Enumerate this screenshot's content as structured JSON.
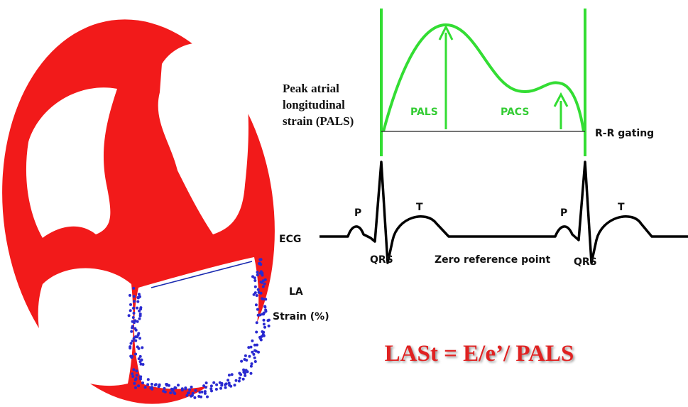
{
  "labels": {
    "pals_note": [
      "Peak atrial",
      "longitudinal",
      "strain (PALS)"
    ],
    "pals": "PALS",
    "pacs": "PACS",
    "rr_gating": "R-R gating",
    "p_first": "P",
    "t_first": "T",
    "ecg": "ECG",
    "qrs_first": "QRS",
    "zero_reference": "Zero reference point",
    "p_second": "P",
    "qrs_second": "QRS",
    "t_second": "T",
    "la": "LA",
    "strain": "Strain (%)",
    "formula": "LASt = E/e’/ PALS"
  }
}
